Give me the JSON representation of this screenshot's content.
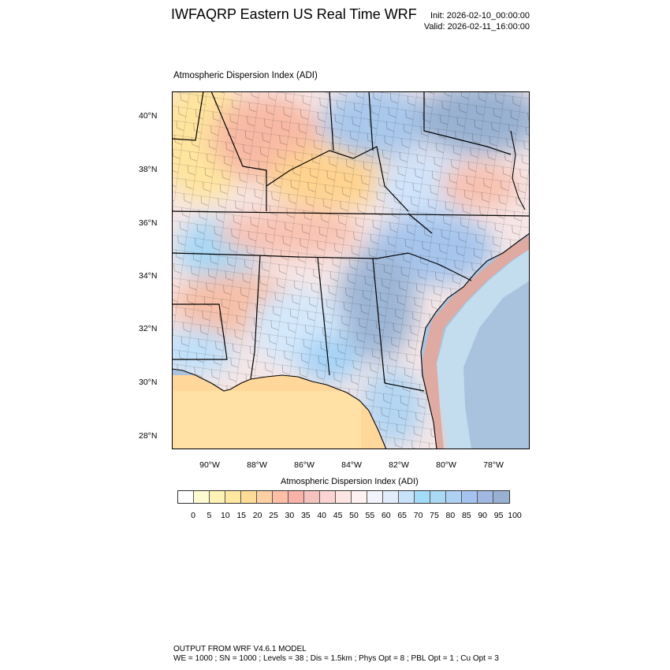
{
  "header": {
    "title": "IWFAQRP Eastern US Real Time WRF",
    "init": "Init: 2026-02-10_00:00:00",
    "valid": "Valid: 2026-02-11_16:00:00"
  },
  "map": {
    "field_label": "Atmospheric Dispersion Index   (ADI)",
    "lat_ticks": [
      "40°N",
      "38°N",
      "36°N",
      "34°N",
      "32°N",
      "30°N",
      "28°N"
    ],
    "lon_ticks": [
      "90°W",
      "88°W",
      "86°W",
      "84°W",
      "82°W",
      "80°W",
      "78°W"
    ]
  },
  "colorbar": {
    "title": "Atmospheric Dispersion Index  (ADI)",
    "levels": [
      "0",
      "5",
      "10",
      "15",
      "20",
      "25",
      "30",
      "35",
      "40",
      "45",
      "50",
      "55",
      "60",
      "65",
      "70",
      "75",
      "80",
      "85",
      "90",
      "95",
      "100"
    ],
    "colors": [
      "#ffffff",
      "#fffbd0",
      "#fff3b3",
      "#ffe9a0",
      "#ffdc95",
      "#ffd0a3",
      "#ffbfa6",
      "#f8b2a8",
      "#f5c3bd",
      "#fad4d0",
      "#fde6e2",
      "#fff1f1",
      "#f3f3fb",
      "#e2ecfb",
      "#c9e2fb",
      "#a3dcf8",
      "#a9d9f4",
      "#aed0f3",
      "#a4c4ef",
      "#a1b8e2",
      "#98b1d2"
    ]
  },
  "footer": {
    "line1": "OUTPUT FROM WRF V4.6.1 MODEL",
    "line2": "WE = 1000 ; SN = 1000 ; Levels = 38 ; Dis = 1.5km ; Phys Opt = 8 ; PBL Opt = 1 ; Cu Opt = 3"
  }
}
